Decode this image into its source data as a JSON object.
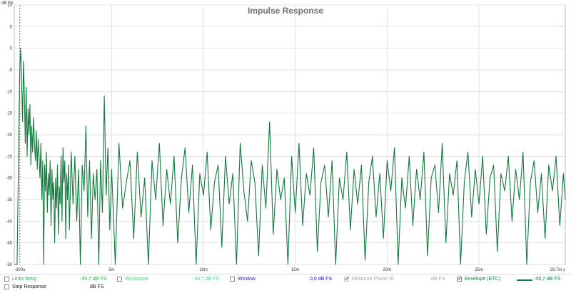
{
  "chart_data": {
    "type": "line",
    "title": "Impulse Response",
    "ylabel": "dB FS",
    "x_unit": "ms",
    "xlim": [
      -0.3,
      29.7
    ],
    "ylim": [
      -50,
      10
    ],
    "x_ticks": [
      -0.3,
      5,
      10,
      15,
      20,
      25,
      29.7
    ],
    "x_tick_labels": [
      "-300u",
      "5m",
      "10m",
      "15m",
      "20m",
      "25m",
      "29.7m s"
    ],
    "y_ticks": [
      10,
      5,
      0,
      -5,
      -10,
      -15,
      -20,
      -25,
      -30,
      -35,
      -40,
      -45,
      -50
    ],
    "y_tick_labels": [
      "10",
      "5",
      "0",
      "-5",
      "-10",
      "-15",
      "-20",
      "-25",
      "-30",
      "-35",
      "-40",
      "-45",
      "-50"
    ],
    "grid": true,
    "series": [
      {
        "name": "Envelope (ETC)",
        "color": "#137a3e",
        "points": [
          [
            -0.3,
            -50
          ],
          [
            -0.2,
            -50
          ],
          [
            -0.15,
            -50
          ],
          [
            0.0,
            -5
          ],
          [
            0.05,
            0
          ],
          [
            0.1,
            -8
          ],
          [
            0.15,
            -17
          ],
          [
            0.2,
            -3
          ],
          [
            0.25,
            -11
          ],
          [
            0.3,
            -22
          ],
          [
            0.35,
            -9
          ],
          [
            0.4,
            -25
          ],
          [
            0.45,
            -14
          ],
          [
            0.5,
            -20
          ],
          [
            0.55,
            -13
          ],
          [
            0.6,
            -27
          ],
          [
            0.65,
            -18
          ],
          [
            0.7,
            -24
          ],
          [
            0.75,
            -16
          ],
          [
            0.8,
            -22
          ],
          [
            0.85,
            -26
          ],
          [
            0.9,
            -19
          ],
          [
            0.95,
            -28
          ],
          [
            1.0,
            -21
          ],
          [
            1.05,
            -25
          ],
          [
            1.1,
            -30
          ],
          [
            1.15,
            -22
          ],
          [
            1.2,
            -35
          ],
          [
            1.25,
            -26
          ],
          [
            1.3,
            -50
          ],
          [
            1.35,
            -27
          ],
          [
            1.4,
            -33
          ],
          [
            1.45,
            -24
          ],
          [
            1.5,
            -38
          ],
          [
            1.55,
            -29
          ],
          [
            1.6,
            -34
          ],
          [
            1.65,
            -26
          ],
          [
            1.7,
            -41
          ],
          [
            1.75,
            -28
          ],
          [
            1.8,
            -35
          ],
          [
            1.85,
            -31
          ],
          [
            1.9,
            -45
          ],
          [
            1.95,
            -30
          ],
          [
            2.0,
            -37
          ],
          [
            2.05,
            -27
          ],
          [
            2.1,
            -43
          ],
          [
            2.15,
            -32
          ],
          [
            2.2,
            -36
          ],
          [
            2.25,
            -25
          ],
          [
            2.3,
            -40
          ],
          [
            2.35,
            -23
          ],
          [
            2.4,
            -31
          ],
          [
            2.45,
            -26
          ],
          [
            2.5,
            -44
          ],
          [
            2.55,
            -29
          ],
          [
            2.6,
            -35
          ],
          [
            2.65,
            -27
          ],
          [
            2.7,
            -42
          ],
          [
            2.8,
            -24
          ],
          [
            2.9,
            -36
          ],
          [
            3.0,
            -25
          ],
          [
            3.1,
            -40
          ],
          [
            3.2,
            -28
          ],
          [
            3.3,
            -50
          ],
          [
            3.4,
            -27
          ],
          [
            3.5,
            -33
          ],
          [
            3.6,
            -18
          ],
          [
            3.7,
            -39
          ],
          [
            3.8,
            -26
          ],
          [
            3.9,
            -44
          ],
          [
            4.0,
            -29
          ],
          [
            4.1,
            -35
          ],
          [
            4.2,
            -28
          ],
          [
            4.3,
            -50
          ],
          [
            4.4,
            -26
          ],
          [
            4.5,
            -38
          ],
          [
            4.6,
            -11
          ],
          [
            4.7,
            -34
          ],
          [
            4.8,
            -23
          ],
          [
            4.9,
            -42
          ],
          [
            5.0,
            -28
          ],
          [
            5.2,
            -50
          ],
          [
            5.4,
            -22
          ],
          [
            5.6,
            -37
          ],
          [
            5.8,
            -31
          ],
          [
            6.0,
            -26
          ],
          [
            6.2,
            -44
          ],
          [
            6.4,
            -24
          ],
          [
            6.6,
            -39
          ],
          [
            6.8,
            -30
          ],
          [
            7.0,
            -50
          ],
          [
            7.2,
            -26
          ],
          [
            7.4,
            -35
          ],
          [
            7.6,
            -22
          ],
          [
            7.8,
            -41
          ],
          [
            8.0,
            -28
          ],
          [
            8.2,
            -36
          ],
          [
            8.4,
            -25
          ],
          [
            8.6,
            -45
          ],
          [
            8.8,
            -30
          ],
          [
            9.0,
            -23
          ],
          [
            9.2,
            -38
          ],
          [
            9.4,
            -27
          ],
          [
            9.6,
            -50
          ],
          [
            9.8,
            -29
          ],
          [
            10.0,
            -34
          ],
          [
            10.2,
            -24
          ],
          [
            10.4,
            -42
          ],
          [
            10.6,
            -31
          ],
          [
            10.8,
            -27
          ],
          [
            11.0,
            -46
          ],
          [
            11.2,
            -25
          ],
          [
            11.4,
            -36
          ],
          [
            11.6,
            -29
          ],
          [
            11.8,
            -50
          ],
          [
            12.0,
            -22
          ],
          [
            12.2,
            -33
          ],
          [
            12.4,
            -40
          ],
          [
            12.6,
            -26
          ],
          [
            12.8,
            -31
          ],
          [
            13.0,
            -48
          ],
          [
            13.2,
            -27
          ],
          [
            13.4,
            -37
          ],
          [
            13.6,
            -17
          ],
          [
            13.8,
            -43
          ],
          [
            14.0,
            -28
          ],
          [
            14.2,
            -35
          ],
          [
            14.4,
            -30
          ],
          [
            14.6,
            -50
          ],
          [
            14.8,
            -25
          ],
          [
            15.0,
            -38
          ],
          [
            15.2,
            -22
          ],
          [
            15.4,
            -41
          ],
          [
            15.6,
            -29
          ],
          [
            15.8,
            -34
          ],
          [
            16.0,
            -23
          ],
          [
            16.2,
            -47
          ],
          [
            16.4,
            -31
          ],
          [
            16.6,
            -27
          ],
          [
            16.8,
            -39
          ],
          [
            17.0,
            -26
          ],
          [
            17.2,
            -50
          ],
          [
            17.4,
            -30
          ],
          [
            17.6,
            -35
          ],
          [
            17.8,
            -24
          ],
          [
            18.0,
            -42
          ],
          [
            18.2,
            -28
          ],
          [
            18.4,
            -36
          ],
          [
            18.6,
            -27
          ],
          [
            18.8,
            -49
          ],
          [
            19.0,
            -31
          ],
          [
            19.2,
            -25
          ],
          [
            19.4,
            -39
          ],
          [
            19.6,
            -29
          ],
          [
            19.8,
            -44
          ],
          [
            20.0,
            -26
          ],
          [
            20.2,
            -33
          ],
          [
            20.4,
            -23
          ],
          [
            20.6,
            -50
          ],
          [
            20.8,
            -30
          ],
          [
            21.0,
            -37
          ],
          [
            21.2,
            -25
          ],
          [
            21.4,
            -41
          ],
          [
            21.6,
            -28
          ],
          [
            21.8,
            -35
          ],
          [
            22.0,
            -24
          ],
          [
            22.2,
            -48
          ],
          [
            22.4,
            -30
          ],
          [
            22.6,
            -27
          ],
          [
            22.8,
            -38
          ],
          [
            23.0,
            -22
          ],
          [
            23.2,
            -45
          ],
          [
            23.4,
            -29
          ],
          [
            23.6,
            -34
          ],
          [
            23.8,
            -26
          ],
          [
            24.0,
            -50
          ],
          [
            24.2,
            -31
          ],
          [
            24.4,
            -24
          ],
          [
            24.6,
            -39
          ],
          [
            24.8,
            -28
          ],
          [
            25.0,
            -36
          ],
          [
            25.2,
            -25
          ],
          [
            25.4,
            -43
          ],
          [
            25.6,
            -30
          ],
          [
            25.8,
            -27
          ],
          [
            26.0,
            -47
          ],
          [
            26.2,
            -29
          ],
          [
            26.4,
            -33
          ],
          [
            26.6,
            -25
          ],
          [
            26.8,
            -40
          ],
          [
            27.0,
            -28
          ],
          [
            27.2,
            -35
          ],
          [
            27.4,
            -24
          ],
          [
            27.6,
            -50
          ],
          [
            27.8,
            -31
          ],
          [
            28.0,
            -26
          ],
          [
            28.2,
            -38
          ],
          [
            28.4,
            -29
          ],
          [
            28.6,
            -44
          ],
          [
            28.8,
            -27
          ],
          [
            29.0,
            -33
          ],
          [
            29.2,
            -25
          ],
          [
            29.4,
            -41
          ],
          [
            29.6,
            -29
          ],
          [
            29.7,
            -35
          ]
        ]
      }
    ]
  },
  "legend": {
    "items": [
      {
        "label": "Links fertig",
        "value": "-35,7 dB FS",
        "checked": false,
        "disabled": false,
        "color": "#2fa84f"
      },
      {
        "label": "Windowed",
        "value": "-35,7 dB FS",
        "checked": false,
        "disabled": false,
        "color": "#4cd68a"
      },
      {
        "label": "Window",
        "value": "0,0 dB FS",
        "checked": false,
        "disabled": false,
        "color": "#2020b0"
      },
      {
        "label": "Minimum Phase IR",
        "value": "dB FS",
        "checked": true,
        "disabled": true,
        "color": "#a9a9a9"
      },
      {
        "label": "Envelope (ETC)",
        "value": "-45,7 dB FS",
        "checked": true,
        "disabled": false,
        "color": "#137a3e"
      },
      {
        "label": "Step Response",
        "value": "dB FS",
        "checked": false,
        "disabled": false,
        "color": "#222222"
      }
    ]
  }
}
